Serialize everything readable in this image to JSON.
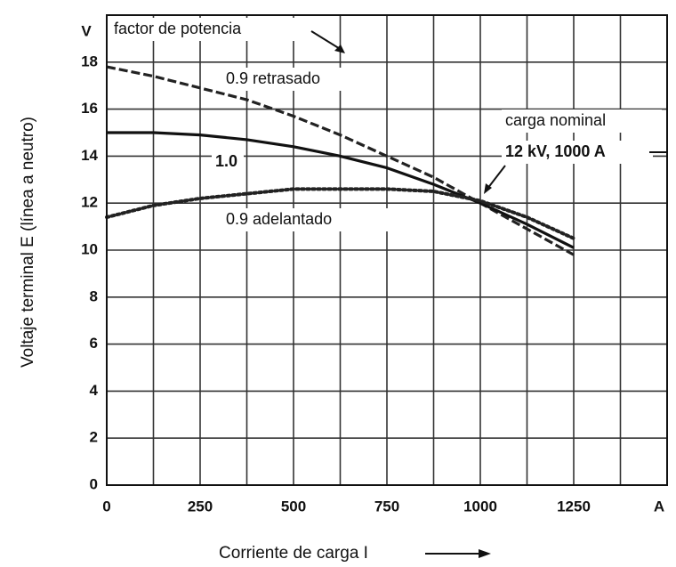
{
  "chart_data": {
    "type": "line",
    "x_label": "Corriente de carga I",
    "y_label": "Voltaje terminal E (línea a neutro)",
    "x_unit": "A",
    "y_unit": "V",
    "annotations": [
      "factor de potencia",
      "0.9 retrasado",
      "1.0",
      "0.9 adelantado",
      "carga nominal",
      "12 kV, 1000 A"
    ],
    "x": [
      0,
      125,
      250,
      375,
      500,
      625,
      750,
      875,
      1000,
      1125,
      1250
    ],
    "series": [
      {
        "name": "0.9 retrasado",
        "color": "#222222",
        "style": "dashed",
        "values": [
          17.8,
          17.4,
          16.9,
          16.4,
          15.7,
          14.9,
          14.0,
          13.1,
          12.0,
          10.9,
          9.8
        ]
      },
      {
        "name": "1.0",
        "color": "#111111",
        "style": "solid",
        "values": [
          15.0,
          15.0,
          14.9,
          14.7,
          14.4,
          14.0,
          13.5,
          12.8,
          12.0,
          11.1,
          10.1
        ]
      },
      {
        "name": "0.9 adelantado",
        "color": "#222222",
        "style": "dotted",
        "values": [
          11.4,
          11.9,
          12.2,
          12.4,
          12.6,
          12.6,
          12.6,
          12.5,
          12.1,
          11.4,
          10.5
        ]
      }
    ],
    "xlim": [
      0,
      1500
    ],
    "ylim": [
      0,
      20
    ],
    "xticks": [
      0,
      250,
      500,
      750,
      1000,
      1250
    ],
    "yticks": [
      0,
      2,
      4,
      6,
      8,
      10,
      12,
      14,
      16,
      18
    ],
    "x_gridlines": [
      125,
      250,
      375,
      500,
      625,
      750,
      875,
      1000,
      1125,
      1250,
      1375
    ],
    "y_gridlines": [
      2,
      4,
      6,
      8,
      10,
      12,
      14,
      16,
      18
    ],
    "grid": true
  }
}
